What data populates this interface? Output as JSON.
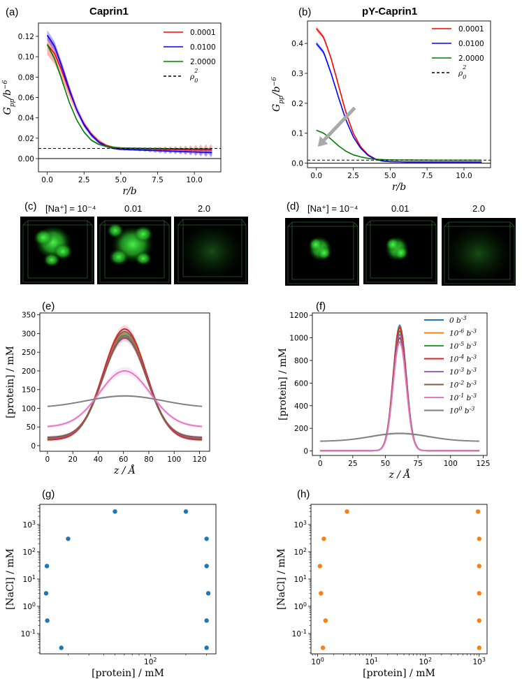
{
  "chart_data": [
    {
      "id": "a",
      "panel_label": "(a)",
      "type": "line",
      "title": "Caprin1",
      "xlabel": "r/b",
      "ylabel": "G_pp/b^-6",
      "xlim": [
        -0.6,
        11.8
      ],
      "ylim": [
        -0.013,
        0.133
      ],
      "xticks": [
        0,
        2.5,
        5,
        7.5,
        10
      ],
      "xtick_labels": [
        "0.0",
        "2.5",
        "5.0",
        "7.5",
        "10.0"
      ],
      "yticks": [
        0,
        0.02,
        0.04,
        0.06,
        0.08,
        0.1,
        0.12
      ],
      "ytick_labels": [
        "0.00",
        "0.02",
        "0.04",
        "0.06",
        "0.08",
        "0.10",
        "0.12"
      ],
      "hline_black": 0,
      "hline_dashed": 0.01,
      "series": [
        {
          "name": "0.0001",
          "color": "#ff0000",
          "x": [
            0,
            0.5,
            1,
            1.5,
            2,
            2.5,
            3,
            3.5,
            4,
            4.5,
            5,
            6,
            7,
            8,
            9,
            10,
            11
          ],
          "y": [
            0.112,
            0.103,
            0.086,
            0.066,
            0.048,
            0.034,
            0.024,
            0.017,
            0.013,
            0.011,
            0.01,
            0.0095,
            0.0093,
            0.009,
            0.0088,
            0.0086,
            0.0085
          ],
          "band": [
            0.01,
            0.01,
            0.008,
            0.006,
            0.004,
            0.003,
            0.002,
            0.002,
            0.001,
            0.001,
            0.001,
            0.002,
            0.002,
            0.003,
            0.004,
            0.005,
            0.006
          ]
        },
        {
          "name": "0.0100",
          "color": "#0000ff",
          "x": [
            0,
            0.5,
            1,
            1.5,
            2,
            2.5,
            3,
            3.5,
            4,
            4.5,
            5,
            6,
            7,
            8,
            9,
            10,
            11
          ],
          "y": [
            0.121,
            0.11,
            0.09,
            0.068,
            0.048,
            0.033,
            0.023,
            0.016,
            0.012,
            0.01,
            0.009,
            0.0085,
            0.008,
            0.0075,
            0.007,
            0.0065,
            0.006
          ],
          "band": [
            0.005,
            0.005,
            0.004,
            0.003,
            0.002,
            0.002,
            0.002,
            0.001,
            0.001,
            0.001,
            0.001,
            0.001,
            0.002,
            0.003,
            0.003,
            0.004,
            0.005
          ]
        },
        {
          "name": "2.0000",
          "color": "#008000",
          "x": [
            0,
            0.5,
            1,
            1.5,
            2,
            2.5,
            3,
            3.5,
            4,
            4.5,
            5,
            6,
            7,
            8,
            9,
            10,
            11
          ],
          "y": [
            0.112,
            0.098,
            0.077,
            0.055,
            0.038,
            0.026,
            0.018,
            0.014,
            0.012,
            0.011,
            0.0105,
            0.0102,
            0.01,
            0.0098,
            0.0097,
            0.0096,
            0.0095
          ],
          "band": [
            0.002,
            0.002,
            0.002,
            0.001,
            0.001,
            0.001,
            0.001,
            0.001,
            0.001,
            0.001,
            0.001,
            0.001,
            0.001,
            0.001,
            0.001,
            0.001,
            0.001
          ]
        }
      ],
      "legend": [
        "0.0001",
        "0.0100",
        "2.0000",
        "ρ0²"
      ],
      "legend_pos": "top-right"
    },
    {
      "id": "b",
      "panel_label": "(b)",
      "type": "line",
      "title": "pY-Caprin1",
      "xlabel": "r/b",
      "ylabel": "G_pp/b^-6",
      "xlim": [
        -0.6,
        11.8
      ],
      "ylim": [
        -0.015,
        0.475
      ],
      "xticks": [
        0,
        2.5,
        5,
        7.5,
        10
      ],
      "xtick_labels": [
        "0.0",
        "2.5",
        "5.0",
        "7.5",
        "10.0"
      ],
      "yticks": [
        0,
        0.1,
        0.2,
        0.3,
        0.4
      ],
      "ytick_labels": [
        "0.0",
        "0.1",
        "0.2",
        "0.3",
        "0.4"
      ],
      "hline_black": 0,
      "hline_dashed": 0.01,
      "series": [
        {
          "name": "0.0001",
          "color": "#ff0000",
          "x": [
            0,
            0.5,
            1,
            1.5,
            2,
            2.5,
            3,
            3.5,
            4,
            4.5,
            5,
            6,
            7,
            8,
            9,
            10,
            11
          ],
          "y": [
            0.45,
            0.42,
            0.35,
            0.26,
            0.17,
            0.1,
            0.055,
            0.028,
            0.014,
            0.008,
            0.005,
            0.004,
            0.004,
            0.004,
            0.004,
            0.004,
            0.004
          ],
          "band": [
            0.008,
            0.007,
            0.006,
            0.004,
            0.003,
            0.002,
            0.001,
            0.001,
            0.001,
            0.001,
            0.001,
            0.001,
            0.001,
            0.001,
            0.001,
            0.001,
            0.001
          ]
        },
        {
          "name": "0.0100",
          "color": "#0000ff",
          "x": [
            0,
            0.5,
            1,
            1.5,
            2,
            2.5,
            3,
            3.5,
            4,
            4.5,
            5,
            6,
            7,
            8,
            9,
            10,
            11
          ],
          "y": [
            0.4,
            0.37,
            0.3,
            0.22,
            0.145,
            0.088,
            0.05,
            0.026,
            0.013,
            0.007,
            0.005,
            0.004,
            0.004,
            0.004,
            0.004,
            0.004,
            0.004
          ],
          "band": [
            0.008,
            0.007,
            0.006,
            0.004,
            0.003,
            0.002,
            0.001,
            0.001,
            0.001,
            0.001,
            0.001,
            0.001,
            0.001,
            0.001,
            0.001,
            0.001,
            0.001
          ]
        },
        {
          "name": "2.0000",
          "color": "#008000",
          "x": [
            0,
            0.5,
            1,
            1.5,
            2,
            2.5,
            3,
            3.5,
            4,
            4.5,
            5,
            6,
            7,
            8,
            9,
            10,
            11
          ],
          "y": [
            0.11,
            0.1,
            0.08,
            0.058,
            0.04,
            0.028,
            0.021,
            0.016,
            0.013,
            0.012,
            0.011,
            0.0105,
            0.0102,
            0.01,
            0.01,
            0.01,
            0.01
          ],
          "band": [
            0.002,
            0.002,
            0.002,
            0.001,
            0.001,
            0.001,
            0.001,
            0.001,
            0.001,
            0.001,
            0.001,
            0.001,
            0.001,
            0.001,
            0.001,
            0.001,
            0.001
          ]
        }
      ],
      "arrow": {
        "from": [
          2.6,
          0.185
        ],
        "to": [
          0.1,
          0.055
        ],
        "color": "#a9a9a9"
      },
      "legend": [
        "0.0001",
        "0.0100",
        "2.0000",
        "ρ0²"
      ],
      "legend_pos": "top-right"
    },
    {
      "id": "e",
      "panel_label": "(e)",
      "type": "line",
      "xlabel": "z / Å",
      "ylabel": "[protein] / mM",
      "xlim": [
        -6,
        128
      ],
      "ylim": [
        -15,
        355
      ],
      "xticks": [
        0,
        20,
        40,
        60,
        80,
        100,
        120
      ],
      "xtick_labels": [
        "0",
        "20",
        "40",
        "60",
        "80",
        "100",
        "120"
      ],
      "yticks": [
        0,
        50,
        100,
        150,
        200,
        250,
        300,
        350
      ],
      "ytick_labels": [
        "0",
        "50",
        "100",
        "150",
        "200",
        "250",
        "300",
        "350"
      ],
      "series": [
        {
          "name": "0 b^-3",
          "color": "#1f77b4",
          "peak": 305,
          "base": 18,
          "sigma": 17
        },
        {
          "name": "10^-6 b^-3",
          "color": "#ff7f0e",
          "peak": 300,
          "base": 20,
          "sigma": 17
        },
        {
          "name": "10^-5 b^-3",
          "color": "#2ca02c",
          "peak": 295,
          "base": 17,
          "sigma": 17
        },
        {
          "name": "10^-4 b^-3",
          "color": "#d62728",
          "peak": 312,
          "base": 15,
          "sigma": 17
        },
        {
          "name": "10^-3 b^-3",
          "color": "#9467bd",
          "peak": 292,
          "base": 20,
          "sigma": 17
        },
        {
          "name": "10^-2 b^-3",
          "color": "#8c564b",
          "peak": 288,
          "base": 22,
          "sigma": 17
        },
        {
          "name": "10^-1 b^-3",
          "color": "#e377c2",
          "peak": 200,
          "base": 50,
          "sigma": 20
        },
        {
          "name": "10^0 b^-3",
          "color": "#7f7f7f",
          "peak": 133,
          "base": 101,
          "sigma": 30
        }
      ],
      "center": 61
    },
    {
      "id": "f",
      "panel_label": "(f)",
      "type": "line",
      "xlabel": "z / Å",
      "ylabel": "[protein] / mM",
      "xlim": [
        -6,
        128
      ],
      "ylim": [
        -40,
        1220
      ],
      "xticks": [
        0,
        25,
        50,
        75,
        100,
        125
      ],
      "xtick_labels": [
        "0",
        "25",
        "50",
        "75",
        "100",
        "125"
      ],
      "yticks": [
        0,
        200,
        400,
        600,
        800,
        1000,
        1200
      ],
      "ytick_labels": [
        "0",
        "200",
        "400",
        "600",
        "800",
        "1000",
        "1200"
      ],
      "series": [
        {
          "name": "0 b^-3",
          "color": "#1f77b4",
          "peak": 1110,
          "base": 2,
          "sigma": 5
        },
        {
          "name": "10^-6 b^-3",
          "color": "#ff7f0e",
          "peak": 1095,
          "base": 2,
          "sigma": 5
        },
        {
          "name": "10^-5 b^-3",
          "color": "#2ca02c",
          "peak": 1060,
          "base": 2,
          "sigma": 5
        },
        {
          "name": "10^-4 b^-3",
          "color": "#d62728",
          "peak": 1090,
          "base": 2,
          "sigma": 5
        },
        {
          "name": "10^-3 b^-3",
          "color": "#9467bd",
          "peak": 1030,
          "base": 2,
          "sigma": 5
        },
        {
          "name": "10^-2 b^-3",
          "color": "#8c564b",
          "peak": 1000,
          "base": 2,
          "sigma": 5
        },
        {
          "name": "10^-1 b^-3",
          "color": "#e377c2",
          "peak": 965,
          "base": 2,
          "sigma": 5
        },
        {
          "name": "10^0 b^-3",
          "color": "#7f7f7f",
          "peak": 155,
          "base": 85,
          "sigma": 22
        }
      ],
      "center": 61,
      "legend": [
        "0 b^-3",
        "10^-6 b^-3",
        "10^-5 b^-3",
        "10^-4 b^-3",
        "10^-3 b^-3",
        "10^-2 b^-3",
        "10^-1 b^-3",
        "10^0 b^-3"
      ],
      "legend_pos": "top-right"
    },
    {
      "id": "g",
      "panel_label": "(g)",
      "type": "scatter",
      "xlabel": "[protein] / mM",
      "ylabel": "[NaCl] / mM",
      "xscale": "log",
      "yscale": "log",
      "xlim": [
        11.5,
        360
      ],
      "ylim": [
        0.018,
        5500
      ],
      "xticks": [
        100
      ],
      "xtick_labels": [
        "10^2"
      ],
      "yticks": [
        0.1,
        1,
        10,
        100,
        1000
      ],
      "ytick_labels": [
        "10^-1",
        "10^0",
        "10^1",
        "10^2",
        "10^3"
      ],
      "color": "#1f77b4",
      "points": [
        [
          13.2,
          30
        ],
        [
          13,
          3
        ],
        [
          13.3,
          0.3
        ],
        [
          17.5,
          0.03
        ],
        [
          20,
          300
        ],
        [
          50,
          3000
        ],
        [
          200,
          3000
        ],
        [
          300,
          300
        ],
        [
          300,
          30
        ],
        [
          310,
          3
        ],
        [
          300,
          0.3
        ],
        [
          300,
          0.03
        ]
      ]
    },
    {
      "id": "h",
      "panel_label": "(h)",
      "type": "scatter",
      "xlabel": "[protein] / mM",
      "ylabel": "[NaCl] / mM",
      "xscale": "log",
      "yscale": "log",
      "xlim": [
        0.75,
        1400
      ],
      "ylim": [
        0.018,
        5500
      ],
      "xticks": [
        1,
        10,
        100,
        1000
      ],
      "xtick_labels": [
        "10^0",
        "10^1",
        "10^2",
        "10^3"
      ],
      "yticks": [
        0.1,
        1,
        10,
        100,
        1000
      ],
      "ytick_labels": [
        "10^-1",
        "10^0",
        "10^1",
        "10^2",
        "10^3"
      ],
      "color": "#ff7f0e",
      "points": [
        [
          1.1,
          30
        ],
        [
          1.15,
          3
        ],
        [
          1.4,
          0.3
        ],
        [
          1.25,
          0.03
        ],
        [
          1.3,
          300
        ],
        [
          3.5,
          3000
        ],
        [
          950,
          3000
        ],
        [
          1000,
          300
        ],
        [
          1000,
          30
        ],
        [
          1000,
          3
        ],
        [
          1000,
          0.3
        ],
        [
          1000,
          0.03
        ]
      ]
    }
  ],
  "snapshots": [
    {
      "id": "c",
      "panel_label": "(c)",
      "labels": [
        "[Na⁺] = 10⁻⁴",
        "0.01",
        "2.0"
      ]
    },
    {
      "id": "d",
      "panel_label": "(d)",
      "labels": [
        "[Na⁺] = 10⁻⁴",
        "0.01",
        "2.0"
      ]
    }
  ],
  "colors": {
    "snapshot_bg": "#000000",
    "droplet": "#33cc33",
    "axis": "#000000"
  }
}
